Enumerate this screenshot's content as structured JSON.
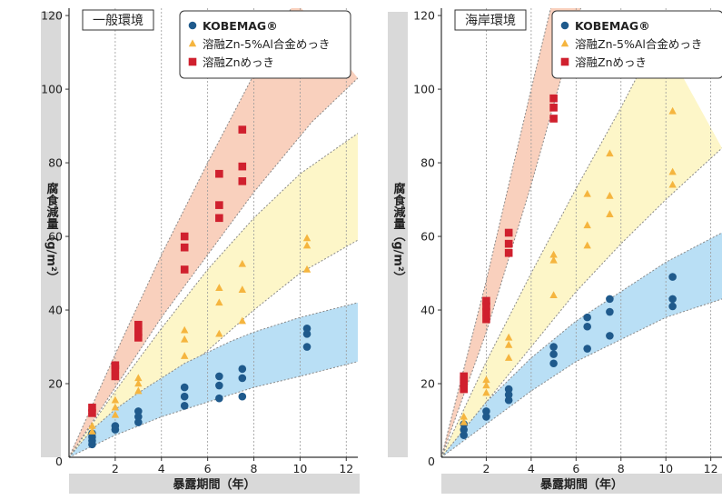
{
  "chart_data": [
    {
      "type": "scatter",
      "panel_label": "一般環境",
      "ylabel": "腐食減量（g/m²）",
      "xlabel": "暴露期間（年）",
      "xlim": [
        0,
        12.5
      ],
      "ylim": [
        0,
        122
      ],
      "xticks": [
        2,
        4,
        6,
        8,
        10,
        12
      ],
      "yticks": [
        20,
        40,
        60,
        80,
        100,
        120
      ],
      "x_origin_label": "0",
      "grid": "vertical-dashed",
      "legend_position": "top-right",
      "series": [
        {
          "name": "KOBEMAG®",
          "marker": "circle",
          "color": "#1f5a8c",
          "points": [
            [
              1,
              3.5
            ],
            [
              1,
              4.5
            ],
            [
              1,
              5.5
            ],
            [
              1,
              6.5
            ],
            [
              2,
              7.5
            ],
            [
              2,
              8.5
            ],
            [
              3,
              9.5
            ],
            [
              3,
              11
            ],
            [
              3,
              12.5
            ],
            [
              5,
              14
            ],
            [
              5,
              16.5
            ],
            [
              5,
              19
            ],
            [
              6.5,
              16
            ],
            [
              6.5,
              19.5
            ],
            [
              6.5,
              22
            ],
            [
              7.5,
              16.5
            ],
            [
              7.5,
              21.5
            ],
            [
              7.5,
              24
            ],
            [
              10.3,
              30
            ],
            [
              10.3,
              33.5
            ],
            [
              10.3,
              35
            ]
          ]
        },
        {
          "name": "溶融Zn-5%Al合金めっき",
          "marker": "triangle",
          "color": "#f5b53f",
          "points": [
            [
              1,
              7
            ],
            [
              1,
              8.5
            ],
            [
              2,
              11.5
            ],
            [
              2,
              13.5
            ],
            [
              2,
              15.5
            ],
            [
              3,
              18
            ],
            [
              3,
              20
            ],
            [
              3,
              21.5
            ],
            [
              5,
              27.5
            ],
            [
              5,
              32
            ],
            [
              5,
              34.5
            ],
            [
              6.5,
              33.5
            ],
            [
              6.5,
              42
            ],
            [
              6.5,
              46
            ],
            [
              7.5,
              37
            ],
            [
              7.5,
              45.5
            ],
            [
              7.5,
              52.5
            ],
            [
              10.3,
              51
            ],
            [
              10.3,
              57.5
            ],
            [
              10.3,
              59.5
            ]
          ]
        },
        {
          "name": "溶融Znめっき",
          "marker": "square",
          "color": "#d0202e",
          "points": [
            [
              1,
              12
            ],
            [
              1,
              13.5
            ],
            [
              2,
              22
            ],
            [
              2,
              24
            ],
            [
              2,
              25
            ],
            [
              3,
              32.5
            ],
            [
              3,
              34
            ],
            [
              3,
              36
            ],
            [
              5,
              51
            ],
            [
              5,
              57
            ],
            [
              5,
              60
            ],
            [
              6.5,
              65
            ],
            [
              6.5,
              68.5
            ],
            [
              6.5,
              77
            ],
            [
              7.5,
              75
            ],
            [
              7.5,
              79
            ],
            [
              7.5,
              89
            ]
          ]
        }
      ],
      "bands": [
        {
          "series": "KOBEMAG®",
          "color": "#b9dff5",
          "upper": [
            [
              0,
              0
            ],
            [
              1,
              7.5
            ],
            [
              2,
              13
            ],
            [
              3,
              17.5
            ],
            [
              4,
              21.5
            ],
            [
              5,
              25.5
            ],
            [
              6,
              28.5
            ],
            [
              7,
              31.5
            ],
            [
              8,
              34
            ],
            [
              9,
              36
            ],
            [
              10,
              38
            ],
            [
              12.5,
              42
            ]
          ],
          "lower": [
            [
              0,
              0
            ],
            [
              1,
              3
            ],
            [
              2,
              6
            ],
            [
              3,
              8.5
            ],
            [
              4,
              11
            ],
            [
              5,
              13
            ],
            [
              6,
              15
            ],
            [
              7,
              17
            ],
            [
              8,
              19
            ],
            [
              9,
              20.5
            ],
            [
              10,
              22
            ],
            [
              12.5,
              26
            ]
          ]
        },
        {
          "series": "溶融Zn-5%Al合金めっき",
          "color": "#fdf6c8",
          "upper": [
            [
              0,
              0
            ],
            [
              2,
              18
            ],
            [
              4,
              35
            ],
            [
              6,
              51
            ],
            [
              8,
              65
            ],
            [
              10,
              77
            ],
            [
              12.5,
              88
            ]
          ],
          "lower": [
            [
              0,
              0
            ],
            [
              2,
              9
            ],
            [
              4,
              19
            ],
            [
              6,
              29
            ],
            [
              8,
              40
            ],
            [
              10,
              50
            ],
            [
              12.5,
              59
            ]
          ]
        },
        {
          "series": "溶融Znめっき",
          "color": "#f9d0bd",
          "upper": [
            [
              0,
              0
            ],
            [
              2,
              28
            ],
            [
              4,
              55
            ],
            [
              6,
              80
            ],
            [
              8,
              104
            ],
            [
              9.8,
              124
            ]
          ],
          "lower": [
            [
              0,
              0
            ],
            [
              2,
              19
            ],
            [
              4,
              38
            ],
            [
              6,
              55
            ],
            [
              8,
              72
            ],
            [
              10.5,
              91
            ],
            [
              12.5,
              103
            ]
          ]
        }
      ]
    },
    {
      "type": "scatter",
      "panel_label": "海岸環境",
      "ylabel": "腐食減量（g/m²）",
      "xlabel": "暴露期間（年）",
      "xlim": [
        0,
        12.5
      ],
      "ylim": [
        0,
        122
      ],
      "xticks": [
        2,
        4,
        6,
        8,
        10,
        12
      ],
      "yticks": [
        20,
        40,
        60,
        80,
        100,
        120
      ],
      "x_origin_label": "0",
      "grid": "vertical-dashed",
      "legend_position": "top-right",
      "series": [
        {
          "name": "KOBEMAG®",
          "marker": "circle",
          "color": "#1f5a8c",
          "points": [
            [
              1,
              6
            ],
            [
              1,
              7.5
            ],
            [
              1,
              9
            ],
            [
              2,
              11
            ],
            [
              2,
              12.5
            ],
            [
              3,
              15.5
            ],
            [
              3,
              17
            ],
            [
              3,
              18.5
            ],
            [
              5,
              25.5
            ],
            [
              5,
              28
            ],
            [
              5,
              30
            ],
            [
              6.5,
              29.5
            ],
            [
              6.5,
              35.5
            ],
            [
              6.5,
              38
            ],
            [
              7.5,
              33
            ],
            [
              7.5,
              39.5
            ],
            [
              7.5,
              43
            ],
            [
              10.3,
              41
            ],
            [
              10.3,
              43
            ],
            [
              10.3,
              49
            ]
          ]
        },
        {
          "name": "溶融Zn-5%Al合金めっき",
          "marker": "triangle",
          "color": "#f5b53f",
          "points": [
            [
              1,
              9.5
            ],
            [
              1,
              11
            ],
            [
              2,
              17.5
            ],
            [
              2,
              19.5
            ],
            [
              2,
              21
            ],
            [
              3,
              27
            ],
            [
              3,
              30.5
            ],
            [
              3,
              32.5
            ],
            [
              5,
              44
            ],
            [
              5,
              53.5
            ],
            [
              5,
              55
            ],
            [
              6.5,
              57.5
            ],
            [
              6.5,
              63
            ],
            [
              6.5,
              71.5
            ],
            [
              7.5,
              66
            ],
            [
              7.5,
              71
            ],
            [
              7.5,
              82.5
            ],
            [
              10.3,
              74
            ],
            [
              10.3,
              77.5
            ],
            [
              10.3,
              94
            ]
          ]
        },
        {
          "name": "溶融Znめっき",
          "marker": "square",
          "color": "#d0202e",
          "points": [
            [
              1,
              18.5
            ],
            [
              1,
              20
            ],
            [
              1,
              21
            ],
            [
              1,
              22
            ],
            [
              2,
              37.5
            ],
            [
              2,
              39.5
            ],
            [
              2,
              41
            ],
            [
              2,
              42.5
            ],
            [
              3,
              55.5
            ],
            [
              3,
              58
            ],
            [
              3,
              61
            ],
            [
              5,
              92
            ],
            [
              5,
              95
            ],
            [
              5,
              97.5
            ]
          ]
        }
      ],
      "bands": [
        {
          "series": "KOBEMAG®",
          "color": "#b9dff5",
          "upper": [
            [
              0,
              0
            ],
            [
              2,
              15
            ],
            [
              4,
              27
            ],
            [
              6,
              37
            ],
            [
              8,
              45
            ],
            [
              10,
              53
            ],
            [
              12.5,
              61
            ]
          ],
          "lower": [
            [
              0,
              0
            ],
            [
              2,
              9
            ],
            [
              4,
              18
            ],
            [
              6,
              26
            ],
            [
              8,
              32
            ],
            [
              10,
              38
            ],
            [
              12.5,
              43
            ]
          ]
        },
        {
          "series": "溶融Zn-5%Al合金めっき",
          "color": "#fdf6c8",
          "upper": [
            [
              0,
              0
            ],
            [
              2,
              26
            ],
            [
              4,
              50
            ],
            [
              6,
              73
            ],
            [
              8,
              95
            ],
            [
              9.7,
              115
            ]
          ],
          "lower": [
            [
              0,
              0
            ],
            [
              2,
              15
            ],
            [
              4,
              30
            ],
            [
              6,
              45
            ],
            [
              8,
              58
            ],
            [
              10,
              70
            ],
            [
              12.5,
              84
            ]
          ]
        },
        {
          "series": "溶融Znめっき",
          "color": "#f9d0bd",
          "upper": [
            [
              0,
              0
            ],
            [
              2,
              48
            ],
            [
              4,
              100
            ],
            [
              4.95,
              124
            ]
          ],
          "lower": [
            [
              0,
              0
            ],
            [
              2,
              34
            ],
            [
              4,
              74
            ],
            [
              6.3,
              124
            ]
          ]
        }
      ]
    }
  ]
}
